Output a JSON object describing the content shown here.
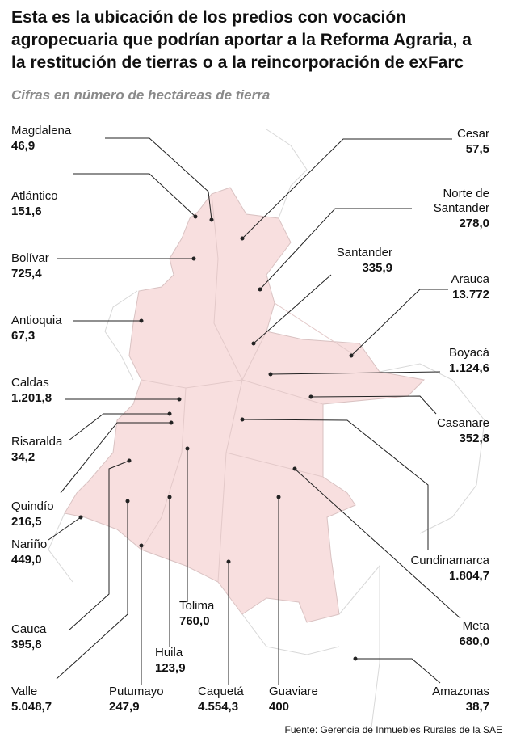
{
  "header": {
    "title_lines": [
      "Esta es la ubicación de los predios con vocación",
      "agropecuaria que podrían aportar a la Reforma Agraria, a",
      "la restitución de tierras o a la reincorporación de exFarc"
    ],
    "subtitle": "Cifras en número de hectáreas de tierra"
  },
  "regions": [
    {
      "name": "Magdalena",
      "value": "46,9"
    },
    {
      "name": "Atlántico",
      "value": "151,6"
    },
    {
      "name": "Bolívar",
      "value": "725,4"
    },
    {
      "name": "Antioquia",
      "value": "67,3"
    },
    {
      "name": "Caldas",
      "value": "1.201,8"
    },
    {
      "name": "Risaralda",
      "value": "34,2"
    },
    {
      "name": "Quindío",
      "value": "216,5"
    },
    {
      "name": "Nariño",
      "value": "449,0"
    },
    {
      "name": "Cauca",
      "value": "395,8"
    },
    {
      "name": "Valle",
      "value": "5.048,7"
    },
    {
      "name": "Putumayo",
      "value": "247,9"
    },
    {
      "name": "Caquetá",
      "value": "4.554,3"
    },
    {
      "name": "Guaviare",
      "value": "400"
    },
    {
      "name": "Huila",
      "value": "123,9"
    },
    {
      "name": "Tolima",
      "value": "760,0"
    },
    {
      "name": "Cesar",
      "value": "57,5"
    },
    {
      "name": "Norte de Santander",
      "value": "278,0"
    },
    {
      "name": "Santander",
      "value": "335,9"
    },
    {
      "name": "Arauca",
      "value": "13.772"
    },
    {
      "name": "Boyacá",
      "value": "1.124,6"
    },
    {
      "name": "Casanare",
      "value": "352,8"
    },
    {
      "name": "Cundinamarca",
      "value": "1.804,7"
    },
    {
      "name": "Meta",
      "value": "680,0"
    },
    {
      "name": "Amazonas",
      "value": "38,7"
    }
  ],
  "source": "Fuente: Gerencia de Inmuebles Rurales de la SAE"
}
